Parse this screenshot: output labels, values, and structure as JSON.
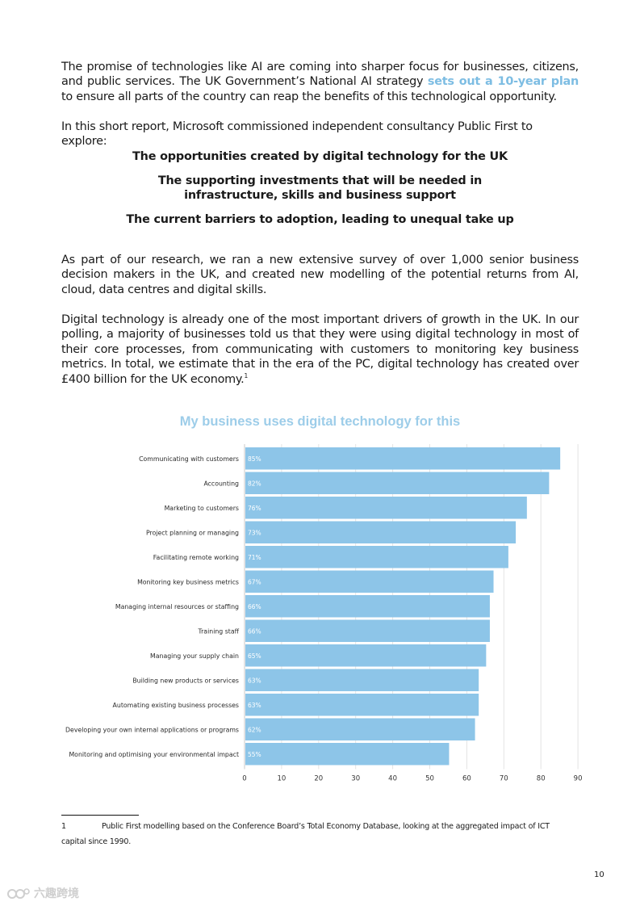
{
  "intro": {
    "before_link": "The promise of technologies like AI are coming into sharper focus for businesses, citizens, and public services. The UK Government’s National AI strategy ",
    "link": "sets out a 10-year plan",
    "after_link": " to ensure all parts of the country can reap the benefits of this technological opportunity."
  },
  "commission": "In this short report, Microsoft commissioned independent consultancy Public First to explore:",
  "highlights": [
    "The opportunities created by digital technology for the UK",
    "The supporting investments that will be needed in infrastructure, skills and business support",
    "The current barriers to adoption, leading to unequal take up"
  ],
  "research": "As part of our research, we ran a new extensive survey of over 1,000 senior business decision makers in the UK, and created new modelling of the potential returns from AI, cloud, data centres and digital skills.",
  "growth": {
    "text": "Digital technology is already one of the most important drivers of growth in the UK. In our polling, a majority of businesses told us that they were using digital technology in most of their core processes, from communicating with customers to monitoring key business metrics. In total, we estimate that in the era of the PC, digital technology has created over £400 billion for the UK economy.",
    "footnote_ref": "1"
  },
  "chart_data": {
    "type": "bar",
    "orientation": "horizontal",
    "title": "My business uses digital technology for this",
    "categories": [
      "Communicating with customers",
      "Accounting",
      "Marketing to customers",
      "Project planning or managing",
      "Facilitating remote working",
      "Monitoring key business metrics",
      "Managing internal resources or staffing",
      "Training staff",
      "Managing your supply chain",
      "Building new products or services",
      "Automating existing business processes",
      "Developing your own internal applications or programs",
      "Monitoring and optimising your environmental impact"
    ],
    "values": [
      85,
      82,
      76,
      73,
      71,
      67,
      66,
      66,
      65,
      63,
      63,
      62,
      55
    ],
    "value_labels": [
      "85%",
      "82%",
      "76%",
      "73%",
      "71%",
      "67%",
      "66%",
      "66%",
      "65%",
      "63%",
      "63%",
      "62%",
      "55%"
    ],
    "xticks": [
      "0",
      "10",
      "20",
      "30",
      "40",
      "50",
      "60",
      "70",
      "80",
      "90"
    ],
    "xlim": [
      0,
      90
    ],
    "grid": "vertical gridlines",
    "bar_color": "#8dc5e8",
    "title_color": "#9dcde9"
  },
  "footnote": {
    "number": "1",
    "text": "Public First modelling based on the Conference Board’s Total Economy Database, looking at the aggregated impact of ICT",
    "text_cont": "capital since 1990."
  },
  "page_number": "10",
  "watermark": "六趣跨境"
}
